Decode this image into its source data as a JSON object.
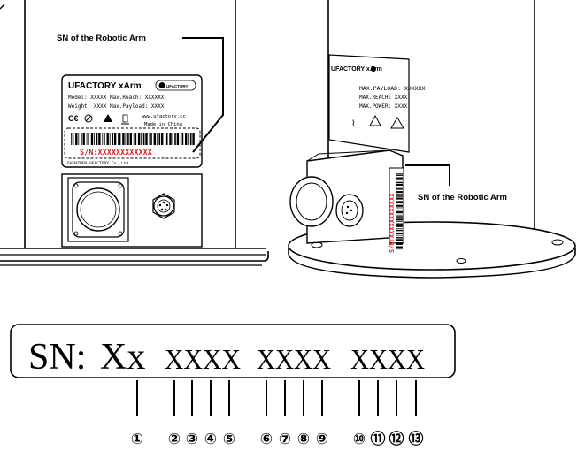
{
  "callouts": {
    "left": "SN of the Robotic Arm",
    "right": "SN of the Robotic Arm"
  },
  "left_label": {
    "title": "UFACTORY xArm",
    "logo_text": "UFACTORY",
    "model_line": "Model: XXXXX   Max.Reach: XXXXXX",
    "weight_line": "Weight: XXXX   Max.Payload: XXXX",
    "website": "www.ufactory.cc",
    "made_in": "Made in China",
    "sn_text": "S/N:XXXXXXXXXXXX",
    "company": "SHENZHEN UFACTORY Co.,Ltd."
  },
  "right_label": {
    "title": "UFACTORY xArm",
    "reach_line": "MAX.REACH: XXXX",
    "payload_line": "MAX.PAYLOAD: XXXXXX",
    "power_line": "MAX.POWER: XXXX",
    "sn_vertical": "S/N:XXXXXXXXXXXX"
  },
  "sn_format": {
    "prefix": "SN: ",
    "groups": [
      "Xx",
      "XXXX",
      "XXXX",
      "XXXX"
    ]
  },
  "positions": [
    "①",
    "②",
    "③",
    "④",
    "⑤",
    "⑥",
    "⑦",
    "⑧",
    "⑨",
    "⑩",
    "⑪",
    "⑫",
    "⑬"
  ],
  "colors": {
    "serial_red": "#e02020",
    "line": "#000000"
  }
}
